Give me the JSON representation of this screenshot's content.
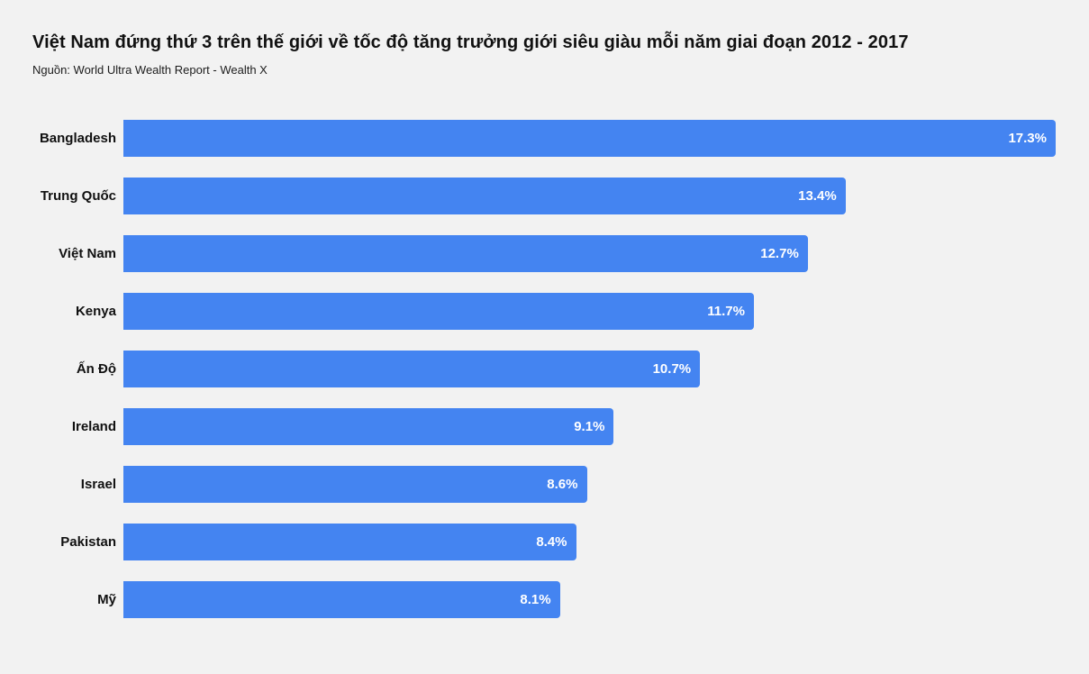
{
  "chart_data": {
    "type": "bar",
    "orientation": "horizontal",
    "title": "Việt Nam đứng thứ 3 trên thế giới về tốc độ tăng trưởng giới siêu giàu mỗi năm giai đoạn 2012 - 2017",
    "subtitle": "Nguồn: World Ultra Wealth Report - Wealth X",
    "categories": [
      "Bangladesh",
      "Trung Quốc",
      "Việt Nam",
      "Kenya",
      "Ấn Độ",
      "Ireland",
      "Israel",
      "Pakistan",
      "Mỹ"
    ],
    "values": [
      17.3,
      13.4,
      12.7,
      11.7,
      10.7,
      9.1,
      8.6,
      8.4,
      8.1
    ],
    "value_labels": [
      "17.3%",
      "13.4%",
      "12.7%",
      "11.7%",
      "10.7%",
      "9.1%",
      "8.6%",
      "8.4%",
      "8.1%"
    ],
    "xlim": [
      0,
      17.3
    ],
    "xlabel": "",
    "ylabel": "",
    "grid": false,
    "legend": false,
    "colors": {
      "bar": "#4484F1",
      "background": "#F2F2F2",
      "title_text": "#111111",
      "category_text": "#111111",
      "value_text": "#FFFFFF"
    }
  }
}
